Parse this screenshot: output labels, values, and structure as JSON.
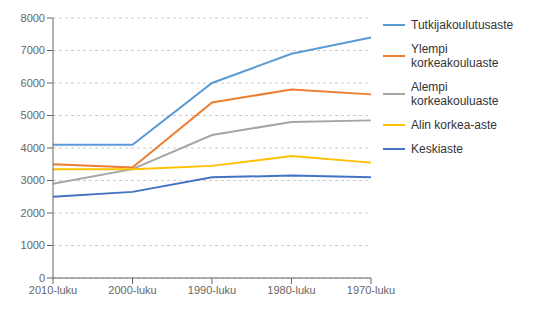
{
  "chart_data": {
    "type": "line",
    "categories": [
      "2010-luku",
      "2000-luku",
      "1990-luku",
      "1980-luku",
      "1970-luku"
    ],
    "series": [
      {
        "name": "Tutkijakoulutusaste",
        "color": "#5B9BD5",
        "values": [
          4100,
          4100,
          6000,
          6900,
          7400
        ]
      },
      {
        "name": "Ylempi\nkorkeakouluaste",
        "color": "#ED7D31",
        "values": [
          3500,
          3400,
          5400,
          5800,
          5650
        ]
      },
      {
        "name": "Alempi\nkorkeakouluaste",
        "color": "#A5A5A5",
        "values": [
          2900,
          3350,
          4400,
          4800,
          4850
        ]
      },
      {
        "name": "Alin korkea-aste",
        "color": "#FFC000",
        "values": [
          3350,
          3350,
          3450,
          3750,
          3550
        ]
      },
      {
        "name": "Keskiaste",
        "color": "#4472C4",
        "values": [
          2500,
          2650,
          3100,
          3150,
          3100
        ]
      }
    ],
    "ylim": [
      0,
      8000
    ],
    "yticks": [
      0,
      1000,
      2000,
      3000,
      4000,
      5000,
      6000,
      7000,
      8000
    ],
    "grid": true,
    "legend": "right"
  }
}
